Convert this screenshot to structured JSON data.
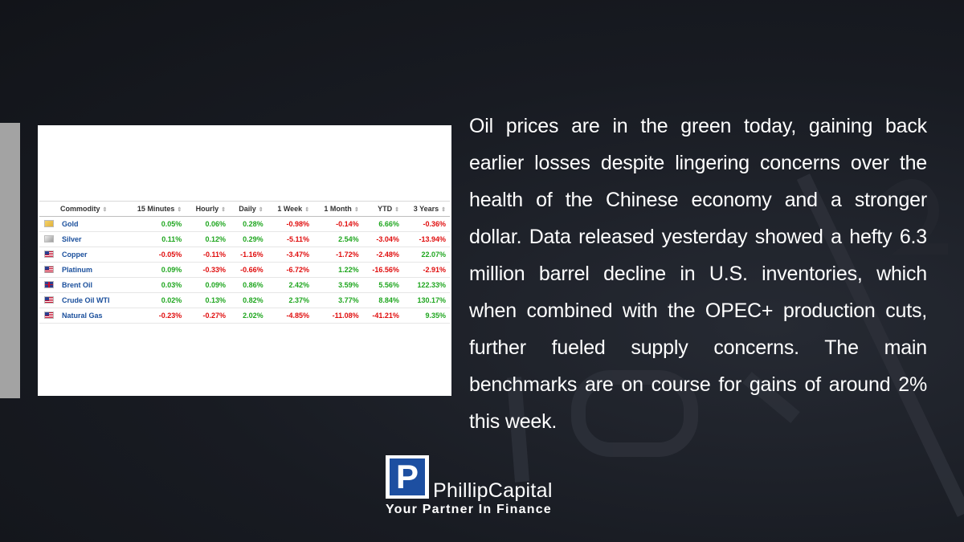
{
  "table": {
    "columns": [
      "Commodity",
      "15 Minutes",
      "Hourly",
      "Daily",
      "1 Week",
      "1 Month",
      "YTD",
      "3 Years"
    ],
    "rows": [
      {
        "flag": "gold",
        "name": "Gold",
        "values": [
          "0.05%",
          "0.06%",
          "0.28%",
          "-0.98%",
          "-0.14%",
          "6.66%",
          "-0.36%"
        ]
      },
      {
        "flag": "silver",
        "name": "Silver",
        "values": [
          "0.11%",
          "0.12%",
          "0.29%",
          "-5.11%",
          "2.54%",
          "-3.04%",
          "-13.94%"
        ]
      },
      {
        "flag": "us",
        "name": "Copper",
        "values": [
          "-0.05%",
          "-0.11%",
          "-1.16%",
          "-3.47%",
          "-1.72%",
          "-2.48%",
          "22.07%"
        ]
      },
      {
        "flag": "us",
        "name": "Platinum",
        "values": [
          "0.09%",
          "-0.33%",
          "-0.66%",
          "-6.72%",
          "1.22%",
          "-16.56%",
          "-2.91%"
        ]
      },
      {
        "flag": "uk",
        "name": "Brent Oil",
        "values": [
          "0.03%",
          "0.09%",
          "0.86%",
          "2.42%",
          "3.59%",
          "5.56%",
          "122.33%"
        ]
      },
      {
        "flag": "us",
        "name": "Crude Oil WTI",
        "values": [
          "0.02%",
          "0.13%",
          "0.82%",
          "2.37%",
          "3.77%",
          "8.84%",
          "130.17%"
        ]
      },
      {
        "flag": "us",
        "name": "Natural Gas",
        "values": [
          "-0.23%",
          "-0.27%",
          "2.02%",
          "-4.85%",
          "-11.08%",
          "-41.21%",
          "9.35%"
        ]
      }
    ]
  },
  "article": {
    "text": "Oil prices are in the green today, gaining back earlier losses despite lingering concerns over the health of the Chinese economy and a stronger dollar. Data released yesterday showed a hefty 6.3 million barrel decline in U.S. inventories, which when combined with the OPEC+ production cuts, further fueled supply concerns. The main benchmarks are on course for gains of around 2% this week."
  },
  "logo": {
    "mark": "P",
    "brand": "PhillipCapital",
    "tagline": "Your Partner In Finance"
  },
  "colors": {
    "positive": "#1fa61f",
    "negative": "#e00d0d",
    "link": "#1a4f9c",
    "brand_blue": "#1d4fa1"
  }
}
